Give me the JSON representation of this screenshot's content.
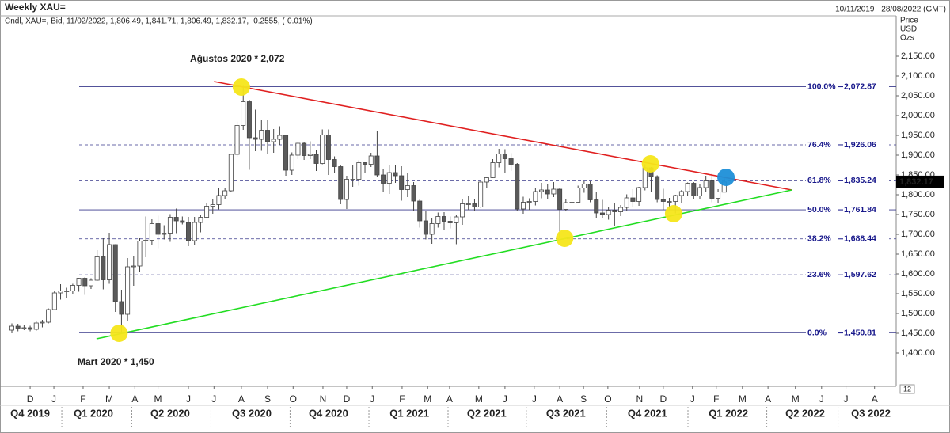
{
  "chart_data": {
    "type": "candlestick",
    "title": "Weekly XAU=",
    "date_range": "10/11/2019 - 28/08/2022 (GMT)",
    "legend_text": "Cndl, XAU=, Bid, 11/02/2022, 1,806.49, 1,841.71, 1,806.49, 1,832.17, -0.2555, (-0.01%)",
    "axis_units": [
      "Price",
      "USD",
      "Ozs"
    ],
    "corner_label": "12",
    "up_color": "#ffffff",
    "down_color": "#5a5a5a",
    "ylim": [
      1316,
      2252
    ],
    "xlim": [
      -1.95,
      145.25
    ],
    "open": [
      1458,
      1468,
      1463,
      1464,
      1460,
      1476,
      1478,
      1510,
      1552,
      1555,
      1557,
      1571,
      1589,
      1570,
      1584,
      1643,
      1585,
      1674,
      1530,
      1498,
      1618,
      1620,
      1683,
      1685,
      1727,
      1700,
      1703,
      1743,
      1734,
      1730,
      1684,
      1730,
      1743,
      1771,
      1775,
      1798,
      1810,
      1902,
      1975,
      2035,
      1944,
      1940,
      1963,
      1934,
      1940,
      1950,
      1862,
      1900,
      1930,
      1899,
      1902,
      1879,
      1951,
      1889,
      1871,
      1788,
      1839,
      1839,
      1881,
      1877,
      1898,
      1850,
      1829,
      1856,
      1848,
      1813,
      1823,
      1784,
      1734,
      1700,
      1727,
      1745,
      1733,
      1729,
      1744,
      1777,
      1777,
      1769,
      1832,
      1843,
      1881,
      1903,
      1891,
      1877,
      1764,
      1781,
      1783,
      1808,
      1812,
      1802,
      1814,
      1763,
      1780,
      1781,
      1817,
      1827,
      1787,
      1754,
      1750,
      1761,
      1757,
      1768,
      1792,
      1783,
      1818,
      1868,
      1846,
      1788,
      1783,
      1783,
      1798,
      1808,
      1829,
      1797,
      1818,
      1835,
      1791,
      1806.49
    ],
    "high": [
      1475,
      1474,
      1470,
      1469,
      1480,
      1484,
      1513,
      1558,
      1574,
      1565,
      1575,
      1590,
      1592,
      1589,
      1660,
      1690,
      1704,
      1675,
      1560,
      1640,
      1645,
      1690,
      1745,
      1738,
      1747,
      1723,
      1751,
      1765,
      1745,
      1744,
      1744,
      1749,
      1779,
      1788,
      1818,
      1818,
      1903,
      1985,
      2075,
      2040,
      2015,
      1990,
      1990,
      1966,
      1973,
      1951,
      1907,
      1933,
      1932,
      1935,
      1913,
      1965,
      1965,
      1897,
      1875,
      1848,
      1875,
      1887,
      1882,
      1906,
      1960,
      1864,
      1874,
      1875,
      1872,
      1855,
      1832,
      1789,
      1760,
      1740,
      1755,
      1756,
      1745,
      1748,
      1790,
      1797,
      1790,
      1834,
      1846,
      1890,
      1916,
      1915,
      1905,
      1880,
      1795,
      1791,
      1817,
      1830,
      1826,
      1832,
      1818,
      1790,
      1800,
      1823,
      1834,
      1834,
      1808,
      1787,
      1770,
      1779,
      1774,
      1801,
      1814,
      1820,
      1877,
      1870,
      1849,
      1815,
      1792,
      1800,
      1812,
      1831,
      1832,
      1828,
      1848,
      1853,
      1814,
      1841.71
    ],
    "low": [
      1450,
      1455,
      1458,
      1455,
      1456,
      1465,
      1475,
      1508,
      1535,
      1540,
      1548,
      1555,
      1547,
      1562,
      1582,
      1561,
      1575,
      1504,
      1451,
      1482,
      1570,
      1606,
      1642,
      1674,
      1665,
      1687,
      1681,
      1703,
      1725,
      1670,
      1672,
      1705,
      1740,
      1752,
      1763,
      1790,
      1808,
      1896,
      1964,
      1863,
      1910,
      1911,
      1904,
      1906,
      1926,
      1848,
      1850,
      1890,
      1888,
      1890,
      1860,
      1877,
      1850,
      1854,
      1776,
      1764,
      1820,
      1823,
      1855,
      1870,
      1845,
      1808,
      1802,
      1830,
      1785,
      1794,
      1760,
      1717,
      1687,
      1676,
      1717,
      1710,
      1715,
      1675,
      1724,
      1761,
      1760,
      1767,
      1817,
      1842,
      1869,
      1855,
      1860,
      1760,
      1752,
      1761,
      1773,
      1791,
      1790,
      1794,
      1690,
      1758,
      1763,
      1778,
      1805,
      1781,
      1742,
      1742,
      1737,
      1721,
      1746,
      1760,
      1770,
      1772,
      1811,
      1806,
      1781,
      1762,
      1761,
      1753,
      1778,
      1798,
      1789,
      1790,
      1808,
      1781,
      1780,
      1806.49
    ],
    "close": [
      1468,
      1463,
      1464,
      1460,
      1476,
      1478,
      1510,
      1552,
      1557,
      1557,
      1571,
      1589,
      1570,
      1584,
      1643,
      1585,
      1674,
      1530,
      1498,
      1618,
      1620,
      1683,
      1685,
      1727,
      1700,
      1703,
      1743,
      1734,
      1730,
      1684,
      1730,
      1743,
      1771,
      1775,
      1798,
      1810,
      1902,
      1975,
      2035,
      1944,
      1940,
      1963,
      1934,
      1940,
      1950,
      1862,
      1900,
      1930,
      1899,
      1902,
      1879,
      1951,
      1889,
      1871,
      1788,
      1839,
      1839,
      1881,
      1877,
      1898,
      1850,
      1829,
      1856,
      1848,
      1813,
      1823,
      1784,
      1734,
      1700,
      1727,
      1745,
      1733,
      1729,
      1744,
      1777,
      1777,
      1769,
      1832,
      1843,
      1881,
      1903,
      1891,
      1877,
      1764,
      1781,
      1783,
      1808,
      1812,
      1802,
      1814,
      1763,
      1780,
      1781,
      1817,
      1827,
      1787,
      1754,
      1750,
      1761,
      1757,
      1768,
      1792,
      1783,
      1818,
      1868,
      1846,
      1788,
      1783,
      1783,
      1798,
      1808,
      1829,
      1797,
      1818,
      1835,
      1791,
      1807,
      1832.17
    ],
    "last_price_label": "1,832.17",
    "yticks": [
      {
        "value": 1400,
        "label": "1,400.00"
      },
      {
        "value": 1450,
        "label": "1,450.00"
      },
      {
        "value": 1500,
        "label": "1,500.00"
      },
      {
        "value": 1550,
        "label": "1,550.00"
      },
      {
        "value": 1600,
        "label": "1,600.00"
      },
      {
        "value": 1650,
        "label": "1,650.00"
      },
      {
        "value": 1700,
        "label": "1,700.00"
      },
      {
        "value": 1750,
        "label": "1,750.00"
      },
      {
        "value": 1800,
        "label": "1,800.00"
      },
      {
        "value": 1850,
        "label": "1,850.00"
      },
      {
        "value": 1900,
        "label": "1,900.00"
      },
      {
        "value": 1950,
        "label": "1,950.00"
      },
      {
        "value": 2000,
        "label": "2,000.00"
      },
      {
        "value": 2050,
        "label": "2,050.00"
      },
      {
        "value": 2100,
        "label": "2,100.00"
      },
      {
        "value": 2150,
        "label": "2,150.00"
      }
    ],
    "xticks": [
      {
        "value": 3,
        "label": "D"
      },
      {
        "value": 6.9,
        "label": "J"
      },
      {
        "value": 11.7,
        "label": "F"
      },
      {
        "value": 16,
        "label": "M"
      },
      {
        "value": 20.2,
        "label": "A"
      },
      {
        "value": 24,
        "label": "M"
      },
      {
        "value": 29,
        "label": "J"
      },
      {
        "value": 33.2,
        "label": "J"
      },
      {
        "value": 37.7,
        "label": "A"
      },
      {
        "value": 42,
        "label": "S"
      },
      {
        "value": 46.2,
        "label": "O"
      },
      {
        "value": 51.1,
        "label": "N"
      },
      {
        "value": 55,
        "label": "D"
      },
      {
        "value": 59.2,
        "label": "J"
      },
      {
        "value": 64.1,
        "label": "F"
      },
      {
        "value": 68.3,
        "label": "M"
      },
      {
        "value": 71.9,
        "label": "A"
      },
      {
        "value": 76.7,
        "label": "M"
      },
      {
        "value": 81,
        "label": "J"
      },
      {
        "value": 85.8,
        "label": "J"
      },
      {
        "value": 90,
        "label": "A"
      },
      {
        "value": 93.9,
        "label": "S"
      },
      {
        "value": 97.9,
        "label": "O"
      },
      {
        "value": 103.1,
        "label": "N"
      },
      {
        "value": 107,
        "label": "D"
      },
      {
        "value": 111.8,
        "label": "J"
      },
      {
        "value": 115.7,
        "label": "F"
      },
      {
        "value": 120,
        "label": "M"
      },
      {
        "value": 124.2,
        "label": "A"
      },
      {
        "value": 128.7,
        "label": "M"
      },
      {
        "value": 133,
        "label": "J"
      },
      {
        "value": 137,
        "label": "J"
      },
      {
        "value": 141.7,
        "label": "A"
      }
    ],
    "quarters": [
      {
        "value": 3,
        "label": "Q4 2019"
      },
      {
        "value": 13.4,
        "label": "Q1 2020"
      },
      {
        "value": 26,
        "label": "Q2 2020"
      },
      {
        "value": 39.4,
        "label": "Q3 2020"
      },
      {
        "value": 52,
        "label": "Q4 2020"
      },
      {
        "value": 65.3,
        "label": "Q1 2021"
      },
      {
        "value": 78,
        "label": "Q2 2021"
      },
      {
        "value": 91,
        "label": "Q3 2021"
      },
      {
        "value": 104.4,
        "label": "Q4 2021"
      },
      {
        "value": 117.7,
        "label": "Q1 2022"
      },
      {
        "value": 130.3,
        "label": "Q2 2022"
      },
      {
        "value": 141.1,
        "label": "Q3 2022"
      }
    ],
    "fib_levels": [
      {
        "pct": "100.0%",
        "value": 2072.87,
        "label": "2,072.87",
        "dashed": false
      },
      {
        "pct": "76.4%",
        "value": 1926.06,
        "label": "1,926.06",
        "dashed": true
      },
      {
        "pct": "61.8%",
        "value": 1835.24,
        "label": "1,835.24",
        "dashed": true
      },
      {
        "pct": "50.0%",
        "value": 1761.84,
        "label": "1,761.84",
        "dashed": false
      },
      {
        "pct": "38.2%",
        "value": 1688.44,
        "label": "1,688.44",
        "dashed": true
      },
      {
        "pct": "23.6%",
        "value": 1597.62,
        "label": "1,597.62",
        "dashed": true
      },
      {
        "pct": "0.0%",
        "value": 1450.81,
        "label": "1,450.81",
        "dashed": false
      }
    ],
    "trendlines": [
      {
        "color": "#e02020",
        "x": [
          33.2,
          128.1
        ],
        "y": [
          2086,
          1812
        ]
      },
      {
        "color": "#22dd22",
        "x": [
          13.9,
          128.1
        ],
        "y": [
          1436,
          1812
        ]
      }
    ],
    "markers": [
      {
        "color": "#f5e61a",
        "x": 37.7,
        "y": 2072
      },
      {
        "color": "#f5e61a",
        "x": 17.6,
        "y": 1450
      },
      {
        "color": "#f5e61a",
        "x": 90.8,
        "y": 1690
      },
      {
        "color": "#f5e61a",
        "x": 104.9,
        "y": 1878
      },
      {
        "color": "#f5e61a",
        "x": 108.7,
        "y": 1752
      },
      {
        "color": "#1e8fd8",
        "x": 117.3,
        "y": 1844
      }
    ],
    "annotations": [
      "Ağustos 2020 * 2,072",
      "Mart 2020 * 1,450"
    ]
  }
}
